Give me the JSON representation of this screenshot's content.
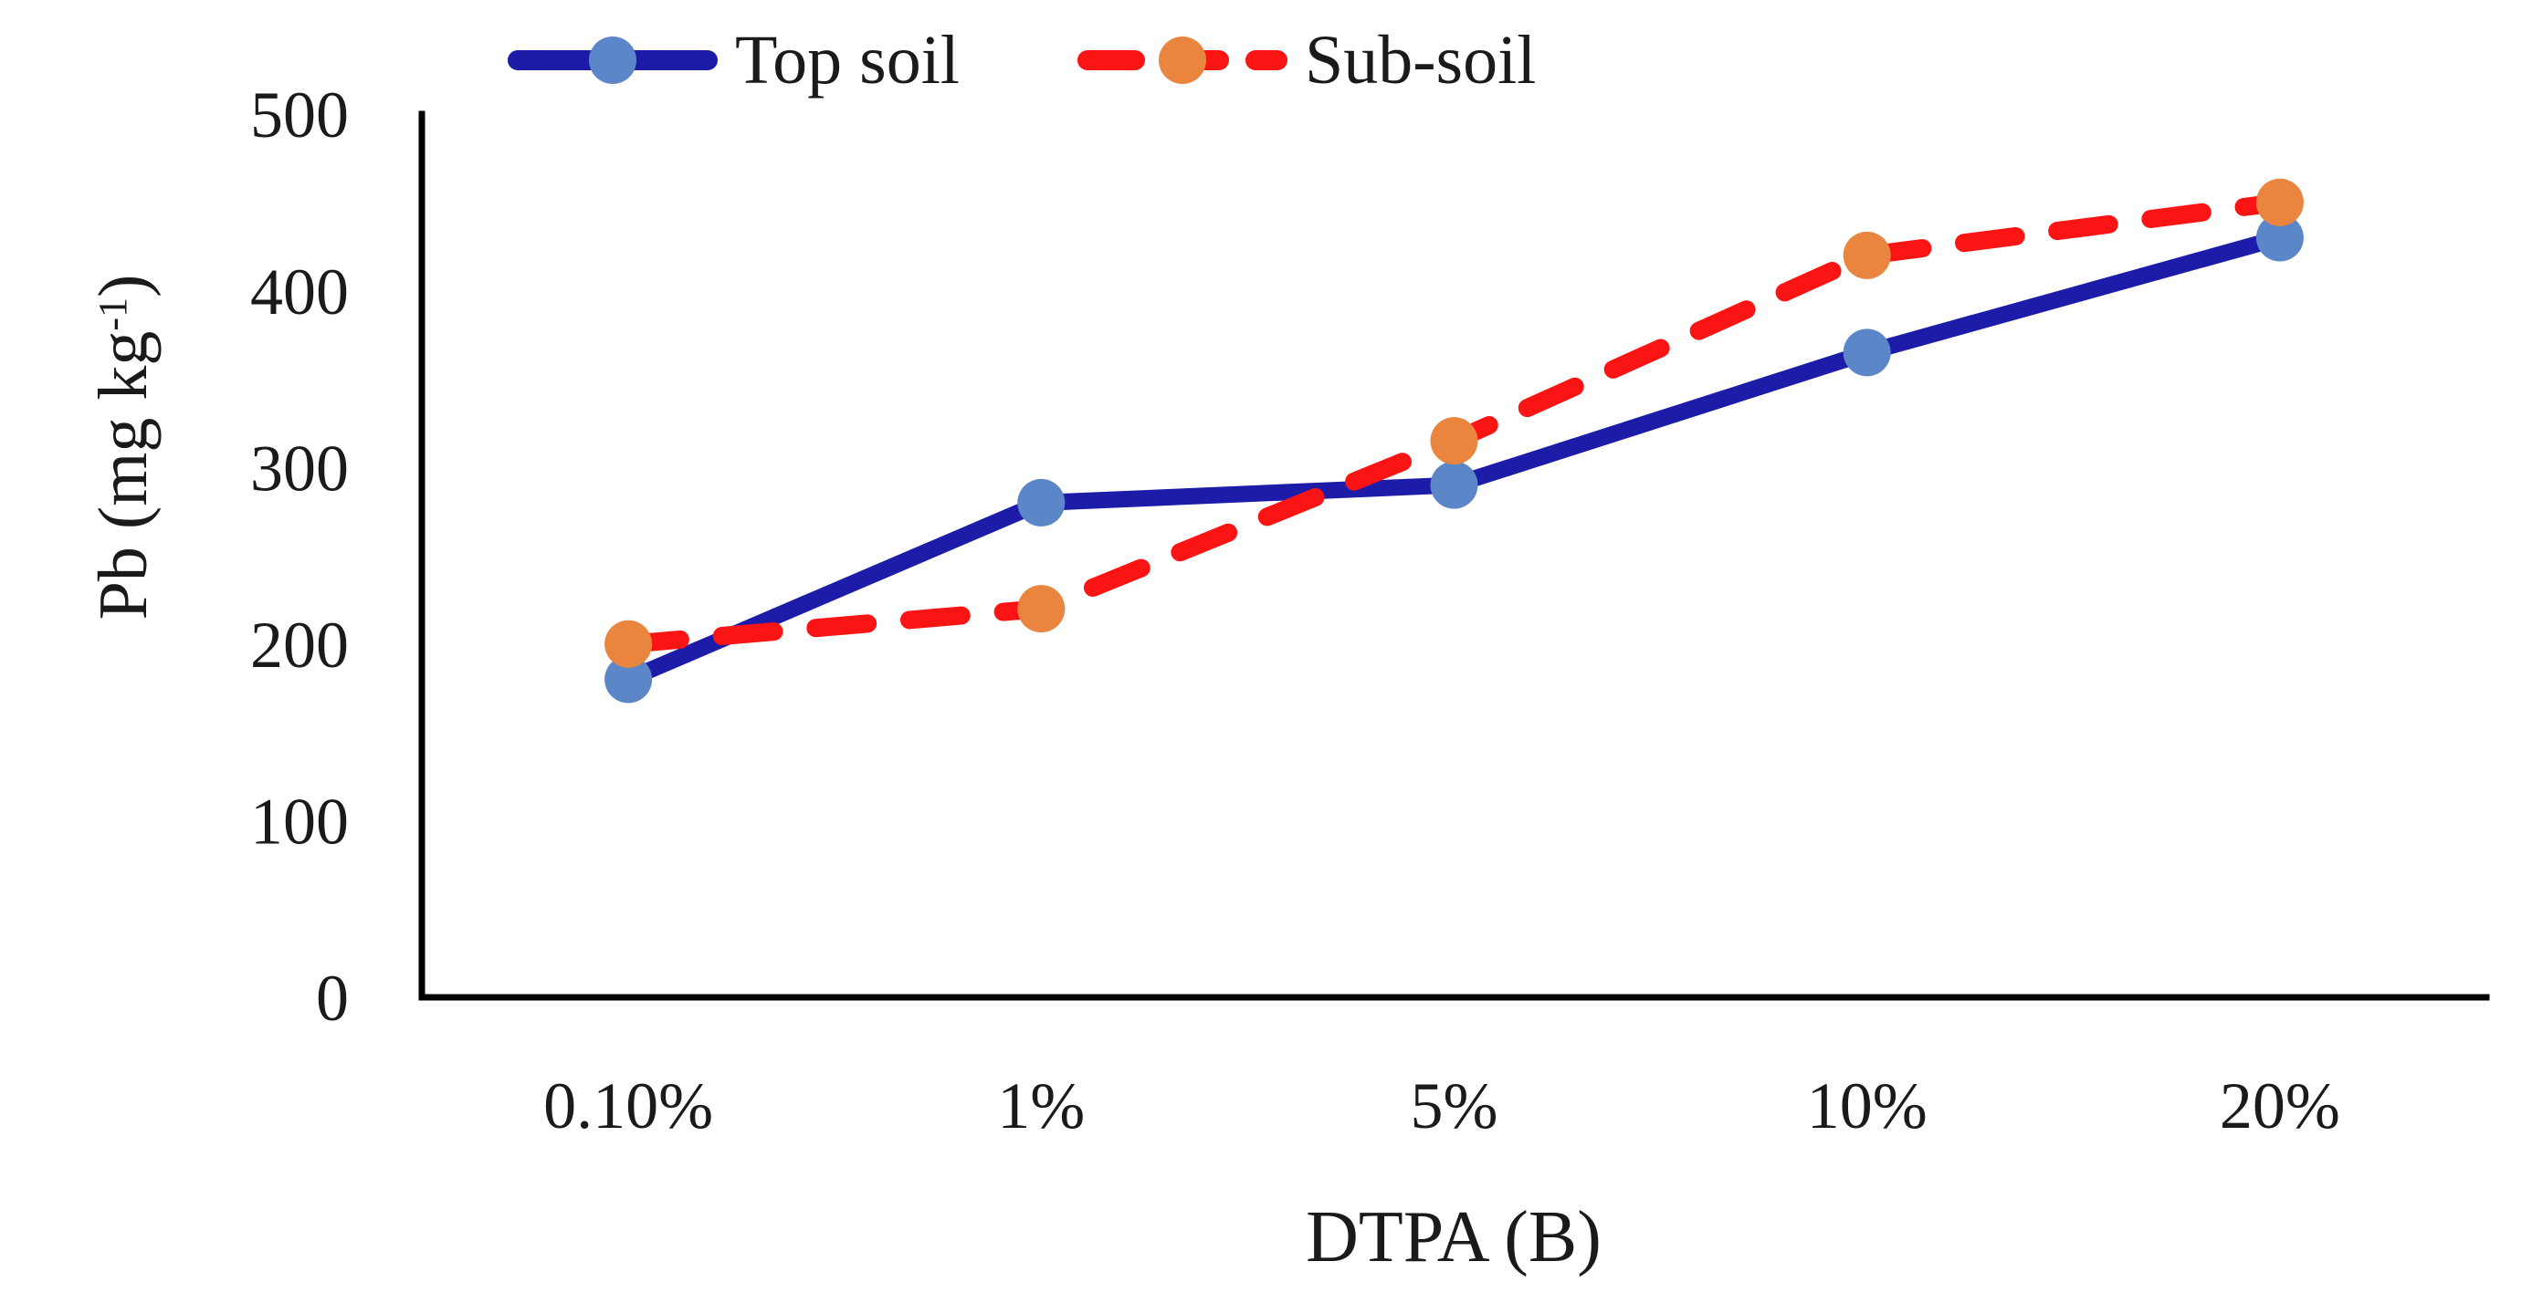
{
  "chart_data": {
    "type": "line",
    "categories": [
      "0.10%",
      "1%",
      "5%",
      "10%",
      "20%"
    ],
    "series": [
      {
        "name": "Top soil",
        "values": [
          180,
          280,
          290,
          365,
          430
        ],
        "line_style": "solid",
        "line_color": "#1c1ca8",
        "marker_color": "#5b86c8"
      },
      {
        "name": "Sub-soil",
        "values": [
          200,
          220,
          315,
          420,
          450
        ],
        "line_style": "dashed",
        "line_color": "#fb1414",
        "marker_color": "#e9853e"
      }
    ],
    "xlabel": "DTPA (B)",
    "ylabel": {
      "prefix": "Pb (mg kg",
      "superscript": "-1",
      "suffix": ")"
    },
    "y_ticks": [
      0,
      100,
      200,
      300,
      400,
      500
    ],
    "ylim": [
      0,
      500
    ],
    "grid": false,
    "legend_position": "top",
    "axis_color": "#000000",
    "text_color": "#1a1a1a"
  }
}
